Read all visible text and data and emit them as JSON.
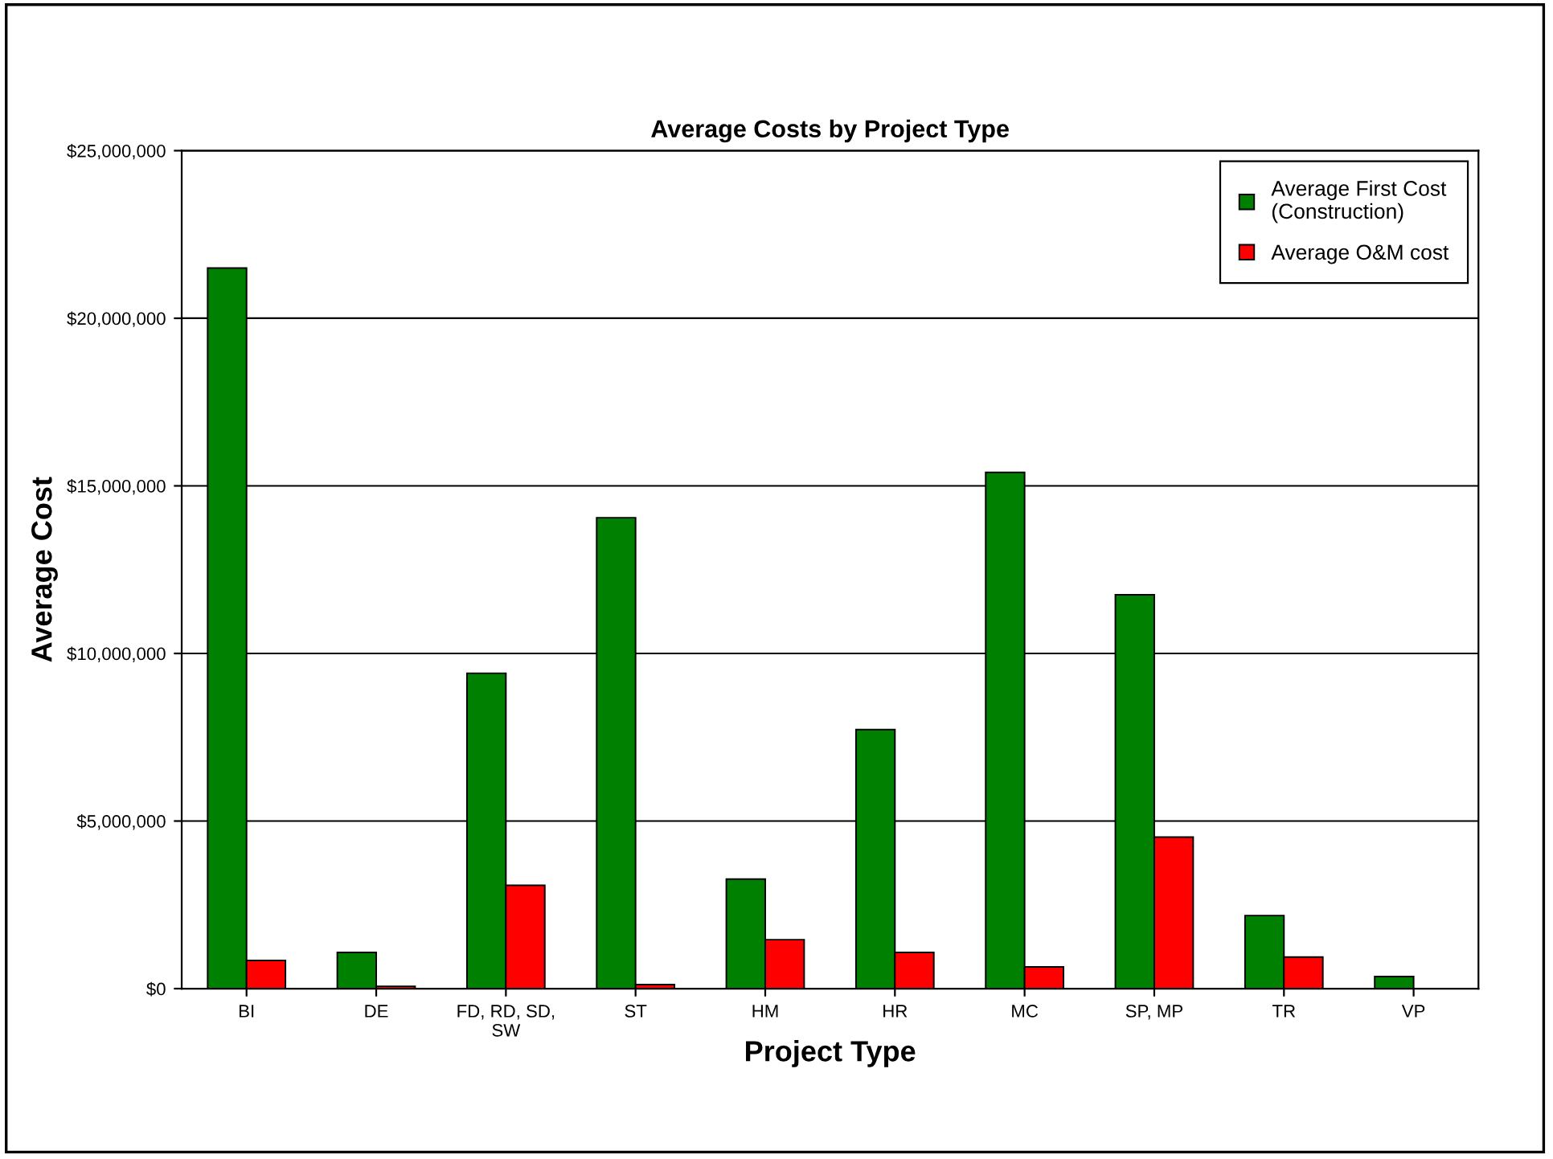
{
  "chart_data": {
    "type": "bar",
    "title": "Average Costs by Project Type",
    "xlabel": "Project Type",
    "ylabel": "Average Cost",
    "categories": [
      "BI",
      "DE",
      "FD, RD, SD,\nSW",
      "ST",
      "HM",
      "HR",
      "MC",
      "SP, MP",
      "TR",
      "VP"
    ],
    "series": [
      {
        "name": "Average First Cost\n(Construction)",
        "color": "#008000",
        "values": [
          21500000,
          1080000,
          9410000,
          14050000,
          3270000,
          7730000,
          15400000,
          11750000,
          2180000,
          360000
        ]
      },
      {
        "name": "Average O&M cost",
        "color": "#ff0000",
        "values": [
          840000,
          70000,
          3080000,
          120000,
          1460000,
          1080000,
          650000,
          4520000,
          940000,
          null
        ]
      }
    ],
    "ylim": [
      0,
      25000000
    ],
    "yticks": [
      {
        "value": 0,
        "label": "$0"
      },
      {
        "value": 5000000,
        "label": "$5,000,000"
      },
      {
        "value": 10000000,
        "label": "$10,000,000"
      },
      {
        "value": 15000000,
        "label": "$15,000,000"
      },
      {
        "value": 20000000,
        "label": "$20,000,000"
      },
      {
        "value": 25000000,
        "label": "$25,000,000"
      }
    ],
    "grid": "y",
    "legend": "top right"
  }
}
